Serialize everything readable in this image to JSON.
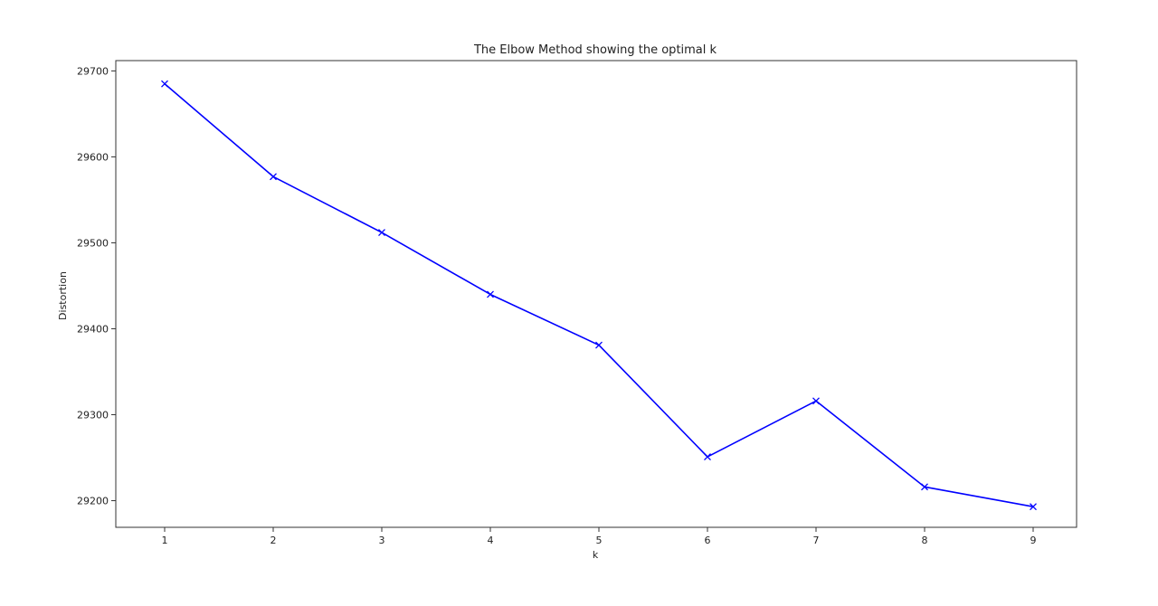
{
  "chart_data": {
    "type": "line",
    "title": "The Elbow Method showing the optimal k",
    "xlabel": "k",
    "ylabel": "Distortion",
    "x": [
      1,
      2,
      3,
      4,
      5,
      6,
      7,
      8,
      9
    ],
    "series": [
      {
        "values": [
          29685,
          29577,
          29512,
          29440,
          29381,
          29251,
          29316,
          29216,
          29193
        ],
        "color": "#0000ff",
        "line_style": "solid",
        "marker": "x"
      }
    ],
    "xticks": [
      1,
      2,
      3,
      4,
      5,
      6,
      7,
      8,
      9
    ],
    "yticks": [
      29200,
      29300,
      29400,
      29500,
      29600,
      29700
    ],
    "xlim": [
      0.55,
      9.4
    ],
    "ylim": [
      29169,
      29712
    ],
    "grid": false,
    "legend": "none"
  }
}
